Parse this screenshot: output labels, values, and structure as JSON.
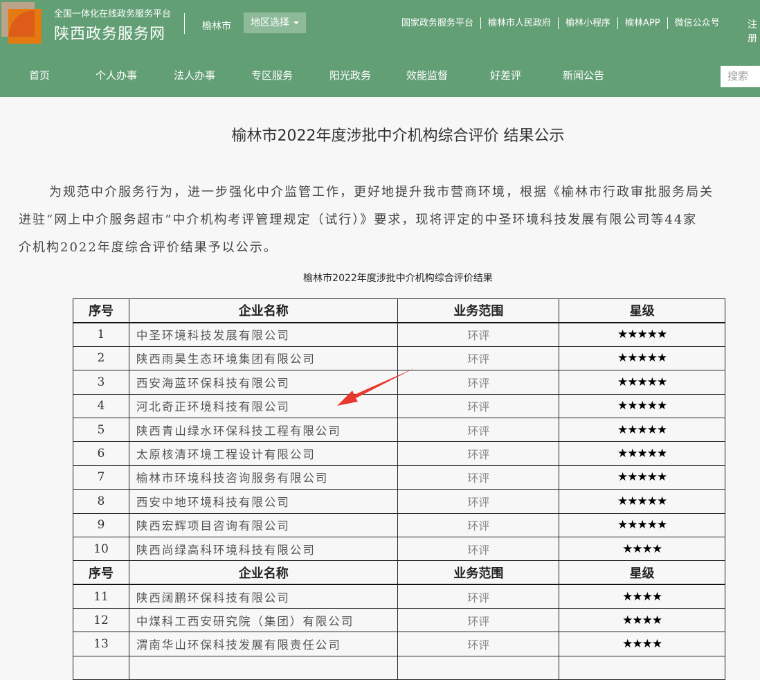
{
  "header": {
    "platform": "全国一体化在线政务服务平台",
    "site_name": "陕西政务服务网",
    "city": "榆林市",
    "region_select": "地区选择",
    "top_links": [
      "国家政务服务平台",
      "榆林市人民政府",
      "榆林小程序",
      "榆林APP",
      "微信公众号"
    ],
    "register": "注册",
    "nav": [
      "首页",
      "个人办事",
      "法人办事",
      "专区服务",
      "阳光政务",
      "效能监督",
      "好差评",
      "新闻公告"
    ],
    "search_placeholder": "搜索"
  },
  "colors": {
    "header_bg": "#639f75",
    "arrow": "#e8392e"
  },
  "article": {
    "title": "榆林市2022年度涉批中介机构综合评价 结果公示",
    "paragraph_lines": [
      "为规范中介服务行为，进一步强化中介监管工作，更好地提升我市营商环境，根据《榆林市行政审批服务局关",
      "进驻“网上中介服务超市”中介机构考评管理规定（试行）》要求，现将评定的中圣环境科技发展有限公司等44家",
      "介机构2022年度综合评价结果予以公示。"
    ],
    "table_caption": "榆林市2022年度涉批中介机构综合评价结果",
    "columns": [
      "序号",
      "企业名称",
      "业务范围",
      "星级"
    ],
    "rows": [
      [
        "1",
        "中圣环境科技发展有限公司",
        "环评",
        "★★★★★"
      ],
      [
        "2",
        "陕西雨昊生态环境集团有限公司",
        "环评",
        "★★★★★"
      ],
      [
        "3",
        "西安海蓝环保科技有限公司",
        "环评",
        "★★★★★"
      ],
      [
        "4",
        "河北奇正环境科技有限公司",
        "环评",
        "★★★★★"
      ],
      [
        "5",
        "陕西青山绿水环保科技工程有限公司",
        "环评",
        "★★★★★"
      ],
      [
        "6",
        "太原核清环境工程设计有限公司",
        "环评",
        "★★★★★"
      ],
      [
        "7",
        "榆林市环境科技咨询服务有限公司",
        "环评",
        "★★★★★"
      ],
      [
        "8",
        "西安中地环境科技有限公司",
        "环评",
        "★★★★★"
      ],
      [
        "9",
        "陕西宏辉项目咨询有限公司",
        "环评",
        "★★★★★"
      ],
      [
        "10",
        "陕西尚绿高科环境科技有限公司",
        "环评",
        "★★★★"
      ],
      [
        "序号",
        "企业名称",
        "业务范围",
        "星级"
      ],
      [
        "11",
        "陕西阔鹏环保科技有限公司",
        "环评",
        "★★★★"
      ],
      [
        "12",
        "中煤科工西安研究院（集团）有限公司",
        "环评",
        "★★★★"
      ],
      [
        "13",
        "渭南华山环保科技发展有限责任公司",
        "环评",
        "★★★★"
      ],
      [
        "",
        "",
        "",
        ""
      ]
    ]
  }
}
